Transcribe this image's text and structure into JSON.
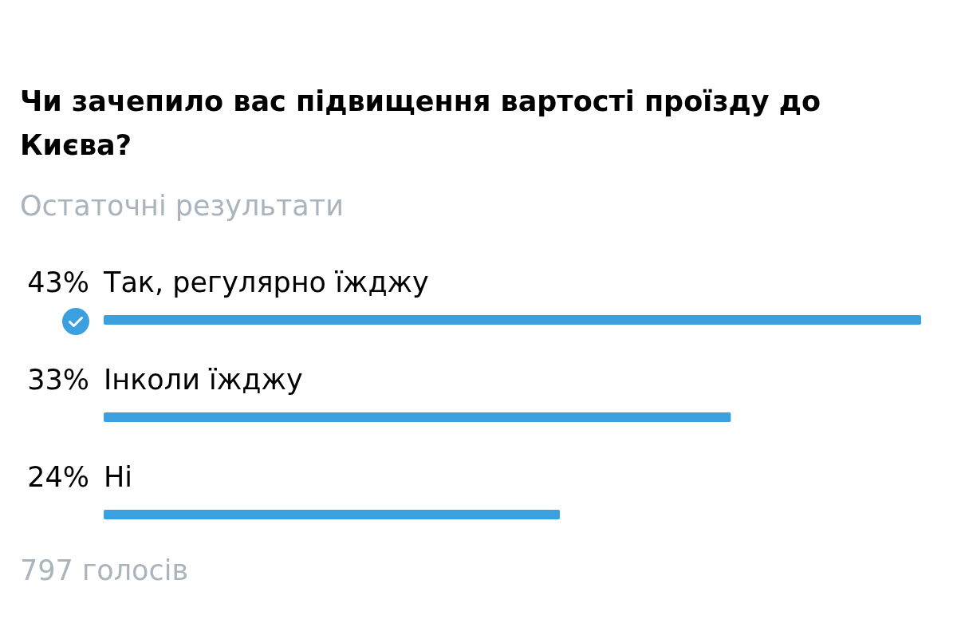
{
  "chart_data": {
    "type": "bar",
    "orientation": "horizontal",
    "title": "Чи зачепило вас підвищення вартості проїзду до Києва?",
    "subtitle": "Остаточні результати",
    "categories": [
      "Так, регулярно їжджу",
      "Інколи їжджу",
      "Ні"
    ],
    "values": [
      43,
      33,
      24
    ],
    "value_labels": [
      "43%",
      "33%",
      "24%"
    ],
    "color": "#3ba0e0",
    "annotations": [
      "797 голосів"
    ]
  }
}
